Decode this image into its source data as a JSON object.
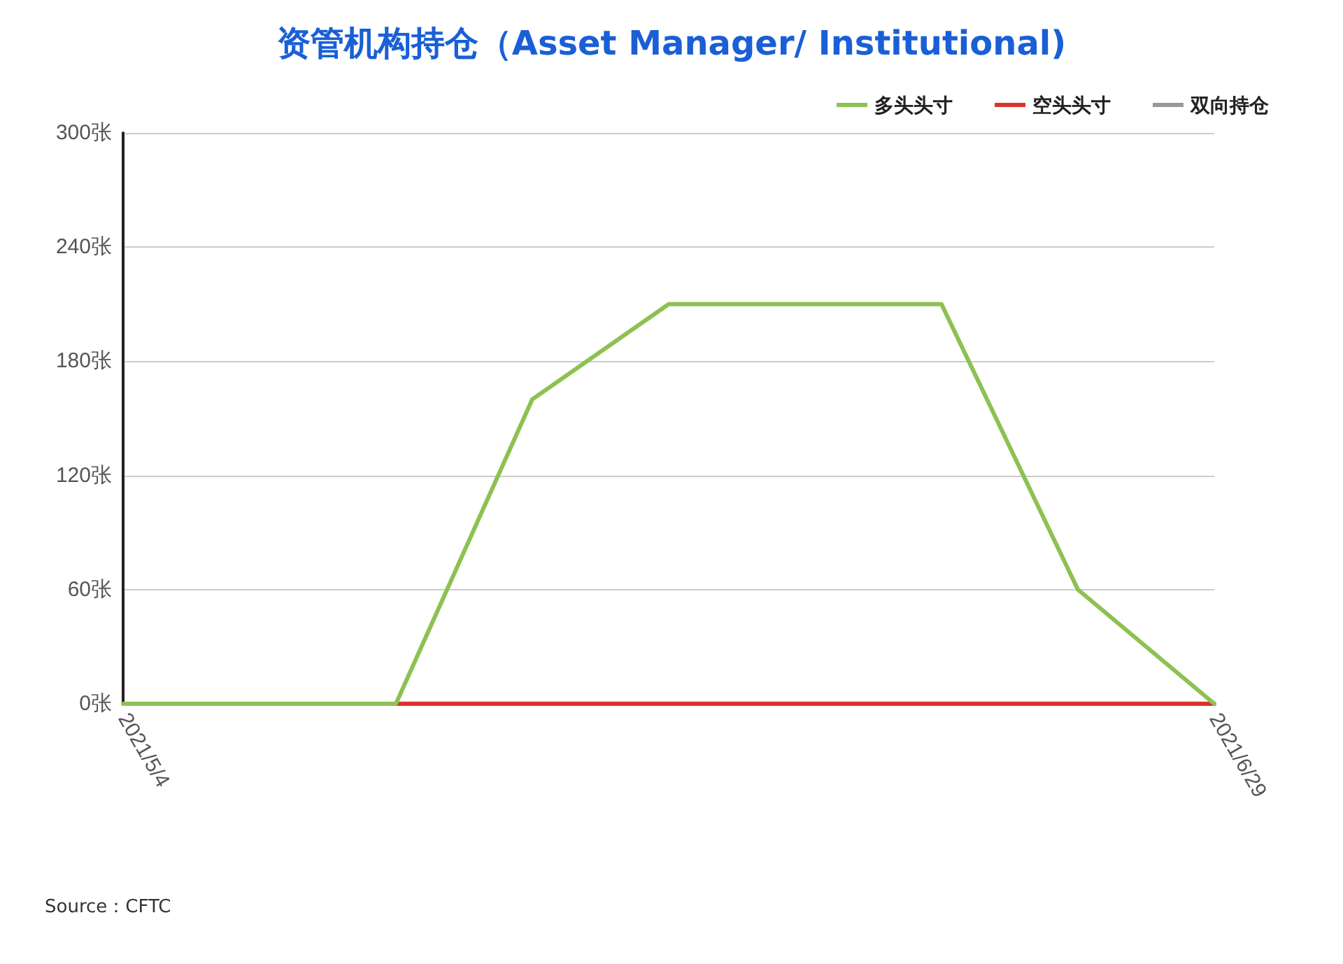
{
  "chart_data": {
    "type": "line",
    "title": "资管机构持仓（Asset Manager/ Institutional)",
    "categories": [
      "2021/5/4",
      null,
      null,
      null,
      null,
      null,
      null,
      null,
      "2021/6/29"
    ],
    "series": [
      {
        "name": "多头头寸",
        "color": "#8dc152",
        "values": [
          0,
          0,
          0,
          160,
          210,
          210,
          210,
          60,
          0
        ]
      },
      {
        "name": "空头头寸",
        "color": "#d9342b",
        "values": [
          null,
          null,
          0,
          0,
          0,
          0,
          0,
          0,
          0
        ]
      },
      {
        "name": "双向持仓",
        "color": "#999999",
        "values": [
          null,
          null,
          null,
          null,
          null,
          null,
          null,
          null,
          null
        ]
      }
    ],
    "ylim": [
      0,
      300
    ],
    "yticks": [
      {
        "value": 0,
        "label": "0张"
      },
      {
        "value": 60,
        "label": "60张"
      },
      {
        "value": 120,
        "label": "120张"
      },
      {
        "value": 180,
        "label": "180张"
      },
      {
        "value": 240,
        "label": "240张"
      },
      {
        "value": 300,
        "label": "300张"
      }
    ],
    "grid": "y",
    "legend": "top right",
    "marker": "none",
    "line_style": "solid",
    "annotations": [
      "Source：CFTC"
    ]
  }
}
